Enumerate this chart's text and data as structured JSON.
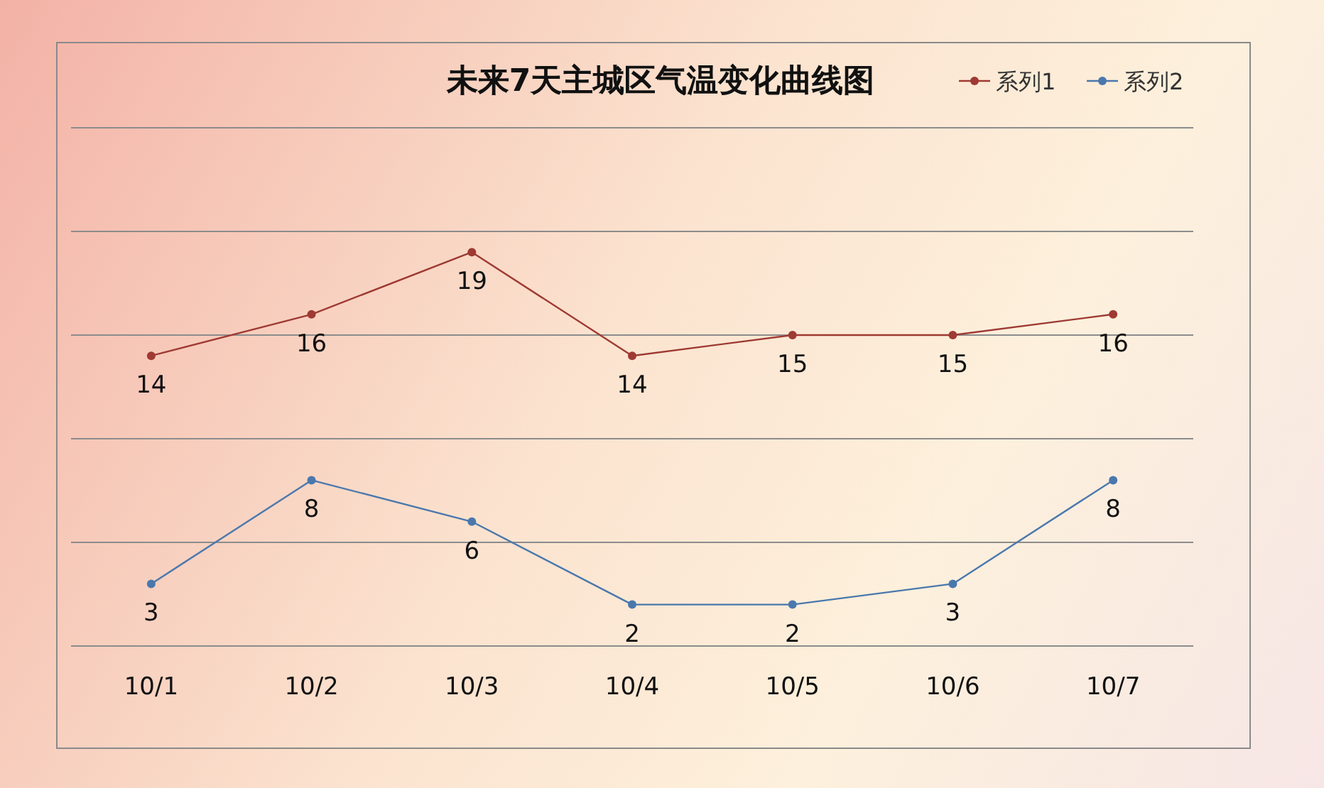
{
  "chart_data": {
    "type": "line",
    "title": "未来7天主城区气温变化曲线图",
    "categories": [
      "10/1",
      "10/2",
      "10/3",
      "10/4",
      "10/5",
      "10/6",
      "10/7"
    ],
    "series": [
      {
        "name": "系列1",
        "color": "#9e3a33",
        "values": [
          14,
          16,
          19,
          14,
          15,
          15,
          16
        ]
      },
      {
        "name": "系列2",
        "color": "#4a78ad",
        "values": [
          3,
          8,
          6,
          2,
          2,
          3,
          8
        ]
      }
    ],
    "ylim": [
      0,
      25
    ],
    "yticks": [
      {
        "value": 0,
        "label": null
      },
      {
        "value": 5,
        "label": null
      },
      {
        "value": 10,
        "label": null
      },
      {
        "value": 15,
        "label": null
      },
      {
        "value": 20,
        "label": null
      },
      {
        "value": 25,
        "label": null
      }
    ],
    "tick_labels": "x",
    "grid": "y",
    "legend": "top right",
    "marker": "circle",
    "line_style": "solid",
    "data_labels": true
  }
}
